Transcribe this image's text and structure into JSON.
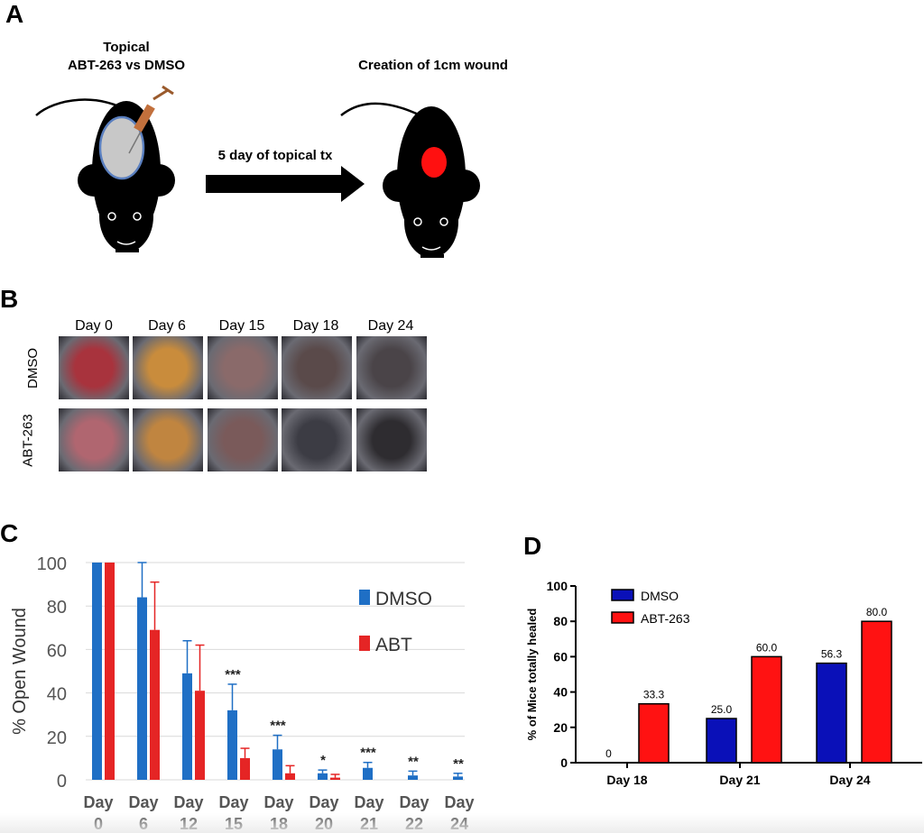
{
  "panel_a": {
    "letter": "A",
    "left_title_line1": "Topical",
    "left_title_line2": "ABT-263 vs DMSO",
    "right_title": "Creation of 1cm wound",
    "arrow_label": "5 day of topical tx",
    "colors": {
      "mouse": "#000000",
      "patch": "#c8c8c8",
      "patch_border": "#5a7fbf",
      "wound": "#ff1010",
      "syringe": "#c2703c"
    }
  },
  "panel_b": {
    "letter": "B",
    "days": [
      "Day 0",
      "Day 6",
      "Day 15",
      "Day 18",
      "Day 24"
    ],
    "rows": [
      "DMSO",
      "ABT-263"
    ],
    "photo_colors": [
      [
        "#a8333d",
        "#c98c3c",
        "#8a6a6a",
        "#5a4a4a",
        "#4a4448"
      ],
      [
        "#b06670",
        "#c08540",
        "#7a5a5a",
        "#3c3c44",
        "#2e2c30"
      ]
    ]
  },
  "chart_data": [
    {
      "type": "bar",
      "panel": "C",
      "title": "",
      "xlabel": "",
      "ylabel": "% Open Wound",
      "ylim": [
        0,
        100
      ],
      "yticks": [
        "0",
        "20",
        "40",
        "60",
        "80",
        "100"
      ],
      "categories": [
        "Day 0",
        "Day 6",
        "Day 12",
        "Day 15",
        "Day 18",
        "Day 20",
        "Day 21",
        "Day 22",
        "Day 24"
      ],
      "category_line1": [
        "Day",
        "Day",
        "Day",
        "Day",
        "Day",
        "Day",
        "Day",
        "Day",
        "Day"
      ],
      "category_line2": [
        "0",
        "6",
        "12",
        "15",
        "18",
        "20",
        "21",
        "22",
        "24"
      ],
      "series": [
        {
          "name": "DMSO",
          "color": "#1f6fc5",
          "values": [
            100,
            84,
            49,
            32,
            14,
            3,
            5.5,
            2,
            1.5
          ],
          "errors": [
            0,
            16,
            15,
            12,
            6.5,
            1.5,
            2.5,
            2,
            1.5
          ]
        },
        {
          "name": "ABT",
          "color": "#e52525",
          "values": [
            100,
            69,
            41,
            10,
            3,
            1,
            0,
            0,
            0
          ],
          "errors": [
            0,
            22,
            21,
            4.5,
            3.5,
            1.5,
            0,
            0,
            0
          ]
        }
      ],
      "significance": [
        "",
        "",
        "",
        "***",
        "***",
        "*",
        "***",
        "**",
        "**"
      ],
      "legend": [
        "DMSO",
        "ABT"
      ],
      "grid": true
    },
    {
      "type": "bar",
      "panel": "D",
      "title": "",
      "xlabel": "",
      "ylabel": "% of Mice totally healed",
      "ylim": [
        0,
        100
      ],
      "yticks": [
        "0",
        "20",
        "40",
        "60",
        "80",
        "100"
      ],
      "categories": [
        "Day 18",
        "Day 21",
        "Day 24"
      ],
      "series": [
        {
          "name": "DMSO",
          "color": "#0a10b8",
          "values": [
            0,
            25.0,
            56.3
          ],
          "labels": [
            "0",
            "25.0",
            "56.3"
          ]
        },
        {
          "name": "ABT-263",
          "color": "#ff1212",
          "values": [
            33.3,
            60.0,
            80.0
          ],
          "labels": [
            "33.3",
            "60.0",
            "80.0"
          ]
        }
      ],
      "legend": [
        "DMSO",
        "ABT-263"
      ],
      "grid": false
    }
  ],
  "panel_c_letter": "C",
  "panel_d_letter": "D"
}
